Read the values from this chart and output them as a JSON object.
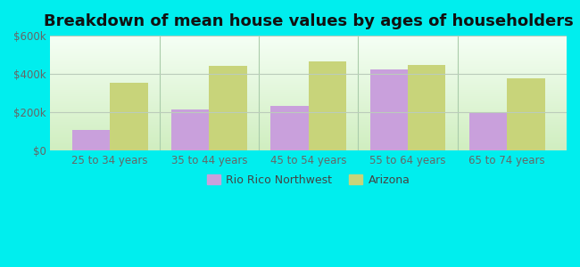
{
  "title": "Breakdown of mean house values by ages of householders",
  "categories": [
    "25 to 34 years",
    "35 to 44 years",
    "45 to 54 years",
    "55 to 64 years",
    "65 to 74 years"
  ],
  "rio_rico": [
    105000,
    212000,
    232000,
    425000,
    197000
  ],
  "arizona": [
    355000,
    440000,
    465000,
    445000,
    375000
  ],
  "rio_rico_color": "#c9a0dc",
  "arizona_color": "#c8d47a",
  "background_color": "#00eeee",
  "plot_bg_top": "#f5fff5",
  "plot_bg_bottom": "#d0eec0",
  "ylim": [
    0,
    600000
  ],
  "yticks": [
    0,
    200000,
    400000,
    600000
  ],
  "ytick_labels": [
    "$0",
    "$200k",
    "$400k",
    "$600k"
  ],
  "title_fontsize": 13,
  "legend_labels": [
    "Rio Rico Northwest",
    "Arizona"
  ],
  "bar_width": 0.38,
  "separator_color": "#aaccaa",
  "grid_color": "#bbccbb"
}
